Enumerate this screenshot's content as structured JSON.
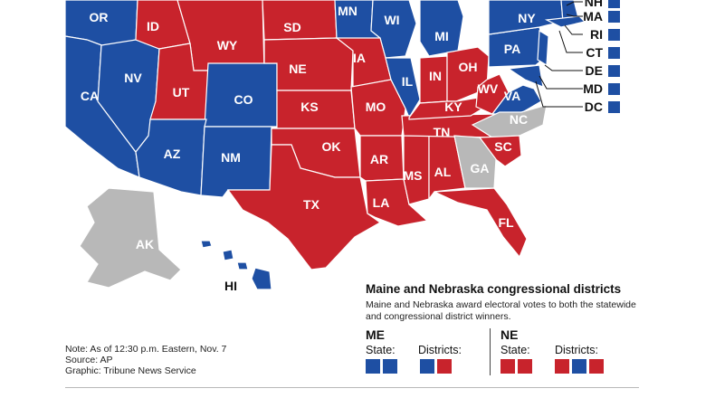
{
  "colors": {
    "dem": "#1e4fa3",
    "rep": "#c8232c",
    "undecided": "#b8b8b8"
  },
  "states": [
    {
      "code": "OR",
      "winner": "dem"
    },
    {
      "code": "ID",
      "winner": "rep"
    },
    {
      "code": "WY",
      "winner": "rep"
    },
    {
      "code": "SD",
      "winner": "rep"
    },
    {
      "code": "MN",
      "winner": "dem"
    },
    {
      "code": "WI",
      "winner": "dem"
    },
    {
      "code": "MI",
      "winner": "dem"
    },
    {
      "code": "NY",
      "winner": "dem"
    },
    {
      "code": "NV",
      "winner": "dem"
    },
    {
      "code": "NE",
      "winner": "rep"
    },
    {
      "code": "IA",
      "winner": "rep"
    },
    {
      "code": "IL",
      "winner": "dem"
    },
    {
      "code": "IN",
      "winner": "rep"
    },
    {
      "code": "OH",
      "winner": "rep"
    },
    {
      "code": "PA",
      "winner": "dem"
    },
    {
      "code": "CA",
      "winner": "dem"
    },
    {
      "code": "UT",
      "winner": "rep"
    },
    {
      "code": "CO",
      "winner": "dem"
    },
    {
      "code": "KS",
      "winner": "rep"
    },
    {
      "code": "MO",
      "winner": "rep"
    },
    {
      "code": "KY",
      "winner": "rep"
    },
    {
      "code": "WV",
      "winner": "rep"
    },
    {
      "code": "VA",
      "winner": "dem"
    },
    {
      "code": "NC",
      "winner": "undecided"
    },
    {
      "code": "TN",
      "winner": "rep"
    },
    {
      "code": "AZ",
      "winner": "dem"
    },
    {
      "code": "NM",
      "winner": "dem"
    },
    {
      "code": "OK",
      "winner": "rep"
    },
    {
      "code": "AR",
      "winner": "rep"
    },
    {
      "code": "SC",
      "winner": "rep"
    },
    {
      "code": "MS",
      "winner": "rep"
    },
    {
      "code": "AL",
      "winner": "rep"
    },
    {
      "code": "GA",
      "winner": "undecided"
    },
    {
      "code": "TX",
      "winner": "rep"
    },
    {
      "code": "LA",
      "winner": "rep"
    },
    {
      "code": "FL",
      "winner": "rep"
    },
    {
      "code": "AK",
      "winner": "undecided"
    },
    {
      "code": "HI",
      "winner": "dem"
    }
  ],
  "northeast_callouts": [
    {
      "code": "NH",
      "winner": "dem"
    },
    {
      "code": "MA",
      "winner": "dem"
    },
    {
      "code": "RI",
      "winner": "dem"
    },
    {
      "code": "CT",
      "winner": "dem"
    },
    {
      "code": "DE",
      "winner": "dem"
    },
    {
      "code": "MD",
      "winner": "dem"
    },
    {
      "code": "DC",
      "winner": "dem"
    }
  ],
  "congressional_districts": {
    "title": "Maine and Nebraska congressional districts",
    "description": "Maine and Nebraska award electoral votes to both the statewide and congressional district winners.",
    "state_label": "State:",
    "districts_label": "Districts:",
    "maine": {
      "code": "ME",
      "state": [
        "dem",
        "dem"
      ],
      "districts": [
        "dem",
        "rep"
      ]
    },
    "nebraska": {
      "code": "NE",
      "state": [
        "rep",
        "rep"
      ],
      "districts": [
        "rep",
        "dem",
        "rep"
      ]
    }
  },
  "notes": [
    "Note: As of 12:30 p.m. Eastern, Nov. 7",
    "Source: AP",
    "Graphic: Tribune News Service"
  ]
}
